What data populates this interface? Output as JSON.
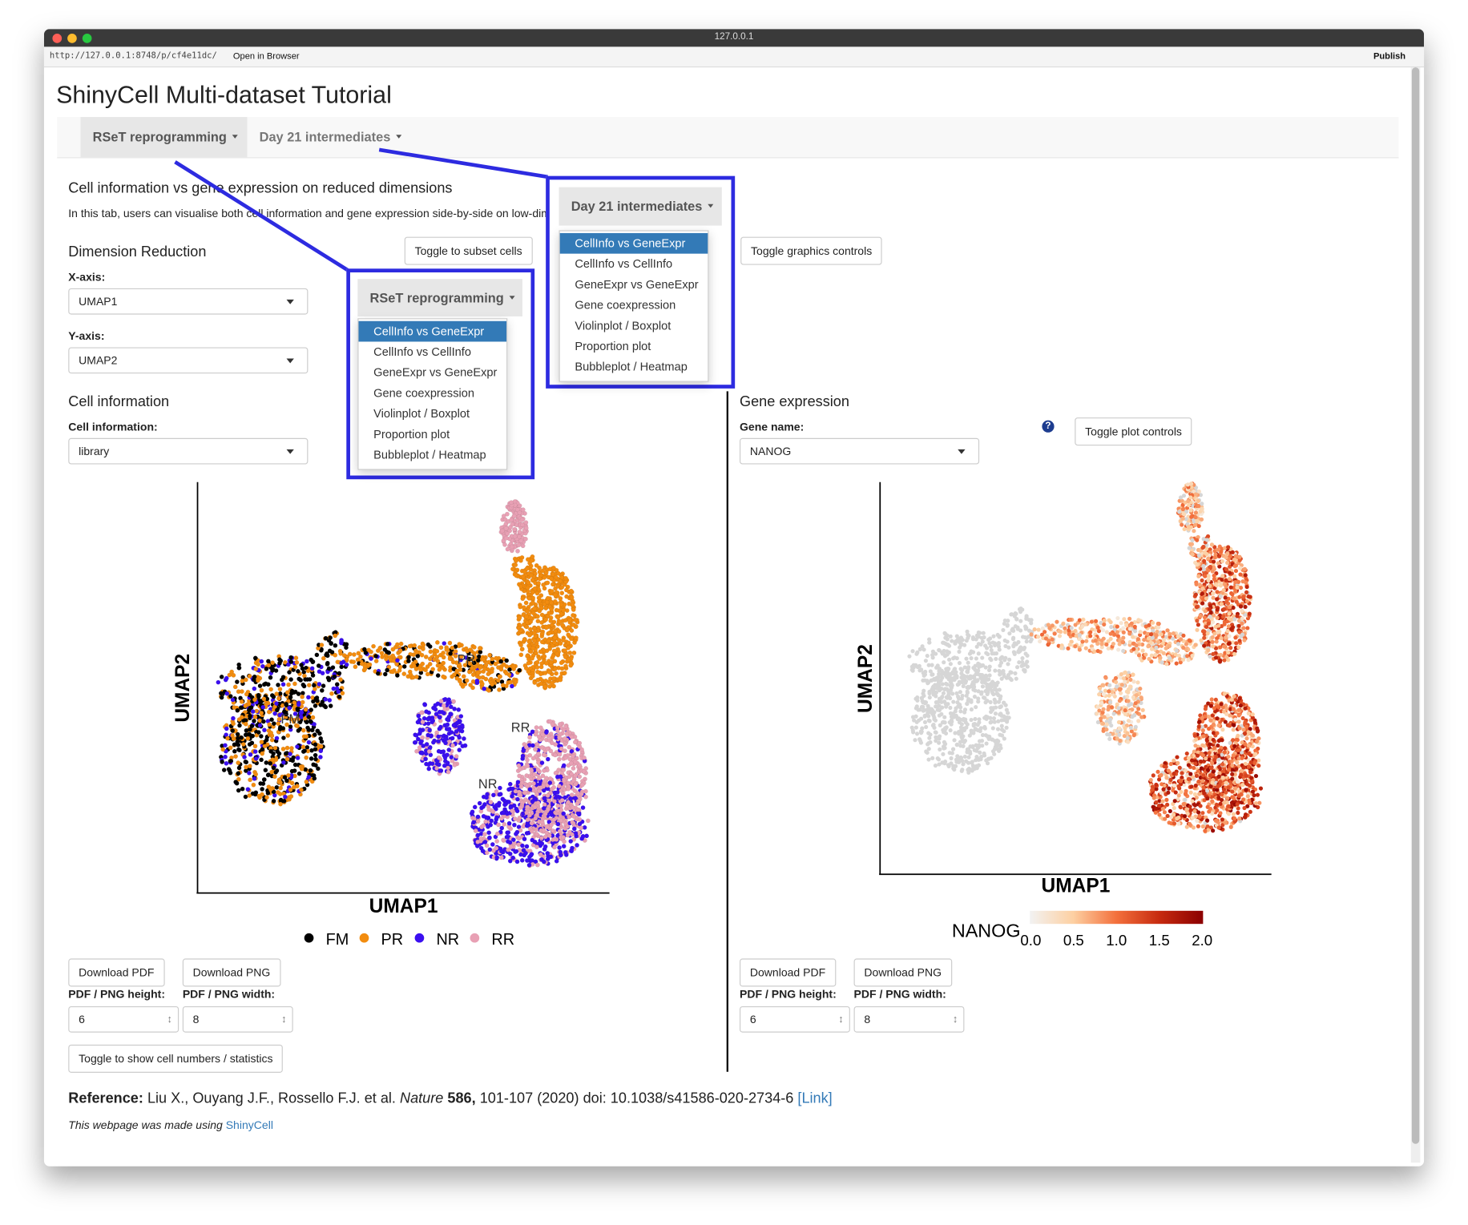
{
  "window": {
    "title": "127.0.0.1"
  },
  "toolbar": {
    "url": "http://127.0.0.1:8748/p/cf4e11dc/",
    "open_in_browser": "Open in Browser",
    "publish": "Publish"
  },
  "header": {
    "title": "ShinyCell Multi-dataset Tutorial"
  },
  "navbar": {
    "tabs": [
      "RSeT reprogramming",
      "Day 21 intermediates"
    ]
  },
  "section": {
    "heading": "Cell information vs gene expression on reduced dimensions",
    "description": "In this tab, users can visualise both cell information and gene expression side-by-side on low-dim"
  },
  "dimension_reduction": {
    "heading": "Dimension Reduction",
    "x_axis_label": "X-axis:",
    "x_axis_value": "UMAP1",
    "y_axis_label": "Y-axis:",
    "y_axis_value": "UMAP2"
  },
  "buttons": {
    "toggle_subset": "Toggle to subset cells",
    "toggle_graphics": "Toggle graphics controls",
    "toggle_plot": "Toggle plot controls",
    "toggle_stats": "Toggle to show cell numbers / statistics"
  },
  "cell_information": {
    "heading": "Cell information",
    "label": "Cell information:",
    "value": "library"
  },
  "gene_expression": {
    "heading": "Gene expression",
    "label": "Gene name:",
    "value": "NANOG"
  },
  "cell_plot": {
    "x_label": "UMAP1",
    "y_label": "UMAP2",
    "cluster_labels": [
      "FM",
      "PR",
      "NR",
      "RR"
    ],
    "legend": [
      {
        "name": "FM",
        "color": "#000000"
      },
      {
        "name": "PR",
        "color": "#f28c0f"
      },
      {
        "name": "NR",
        "color": "#3b0ff0"
      },
      {
        "name": "RR",
        "color": "#e8a0b4"
      }
    ]
  },
  "gene_plot": {
    "x_label": "UMAP1",
    "y_label": "UMAP2",
    "legend_title": "NANOG",
    "legend_ticks": [
      "0.0",
      "0.5",
      "1.0",
      "1.5",
      "2.0"
    ],
    "colors": [
      "#f2f2f2",
      "#fdd0a2",
      "#f3703c",
      "#c62a0f",
      "#8b0000"
    ],
    "low_color": "#d6d6d6"
  },
  "downloads": {
    "pdf": "Download PDF",
    "png": "Download PNG",
    "height_label": "PDF / PNG height:",
    "width_label": "PDF / PNG width:",
    "height_value": "6",
    "width_value": "8"
  },
  "reference": {
    "label": "Reference:",
    "authors": "Liu X., Ouyang J.F., Rossello F.J. et al.",
    "journal": "Nature",
    "volume": "586,",
    "details": "101-107 (2020) doi: 10.1038/s41586-020-2734-6",
    "link": "[Link]"
  },
  "footer": {
    "text": "This webpage was made using",
    "link": "ShinyCell"
  },
  "dropdowns": [
    {
      "title": "RSeT reprogramming",
      "items": [
        "CellInfo vs GeneExpr",
        "CellInfo vs CellInfo",
        "GeneExpr vs GeneExpr",
        "Gene coexpression",
        "Violinplot / Boxplot",
        "Proportion plot",
        "Bubbleplot / Heatmap"
      ]
    },
    {
      "title": "Day 21 intermediates",
      "items": [
        "CellInfo vs GeneExpr",
        "CellInfo vs CellInfo",
        "GeneExpr vs GeneExpr",
        "Gene coexpression",
        "Violinplot / Boxplot",
        "Proportion plot",
        "Bubbleplot / Heatmap"
      ]
    }
  ]
}
